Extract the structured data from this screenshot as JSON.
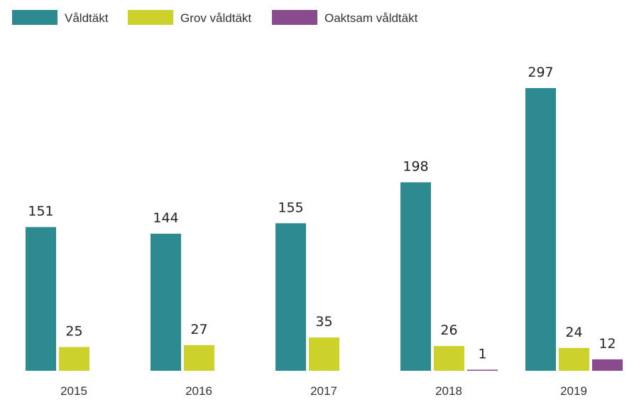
{
  "chart_data": {
    "type": "bar",
    "categories": [
      "2015",
      "2016",
      "2017",
      "2018",
      "2019"
    ],
    "series": [
      {
        "name": "Våldtäkt",
        "color": "#2e8a91",
        "values": [
          151,
          144,
          155,
          198,
          297
        ]
      },
      {
        "name": "Grov våldtäkt",
        "color": "#cdd12c",
        "values": [
          25,
          27,
          35,
          26,
          24
        ]
      },
      {
        "name": "Oaktsam våldtäkt",
        "color": "#8a4a8e",
        "values": [
          null,
          null,
          null,
          1,
          12
        ]
      }
    ],
    "ylim": [
      0,
      297
    ],
    "grid": false,
    "legend_position": "top-left",
    "data_labels": true
  }
}
